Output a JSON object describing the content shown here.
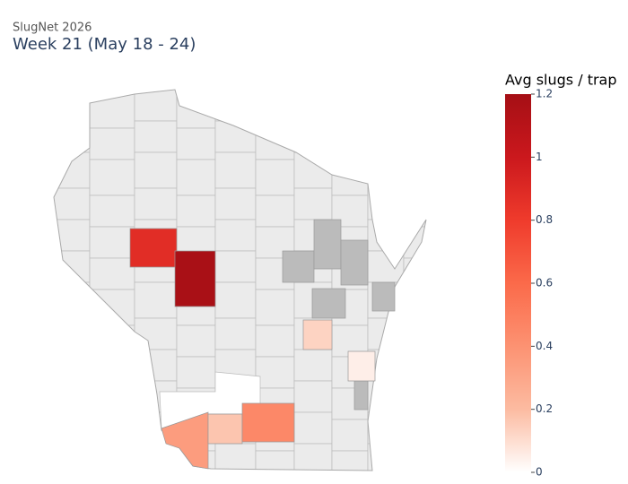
{
  "chart_data": {
    "type": "choropleth",
    "subtitle": "SlugNet 2026",
    "title": "Week 21 (May 18 - 24)",
    "values": [
      0.88,
      1.18,
      0.13,
      0.05,
      0.35,
      0.17,
      0.45
    ],
    "colorbar": {
      "title": "Avg slugs / trap",
      "lim": [
        0,
        1.2
      ],
      "ticks": [
        0,
        0.2,
        0.4,
        0.6,
        0.8,
        1,
        1.2
      ]
    },
    "colorscale": [
      "#ffffff",
      "#fcbba1",
      "#fc9272",
      "#fb6a4a",
      "#ef3b2c",
      "#cb181d",
      "#a50f15"
    ],
    "no_data_color": "#bbbbbb",
    "base_color": "#ebebeb"
  }
}
